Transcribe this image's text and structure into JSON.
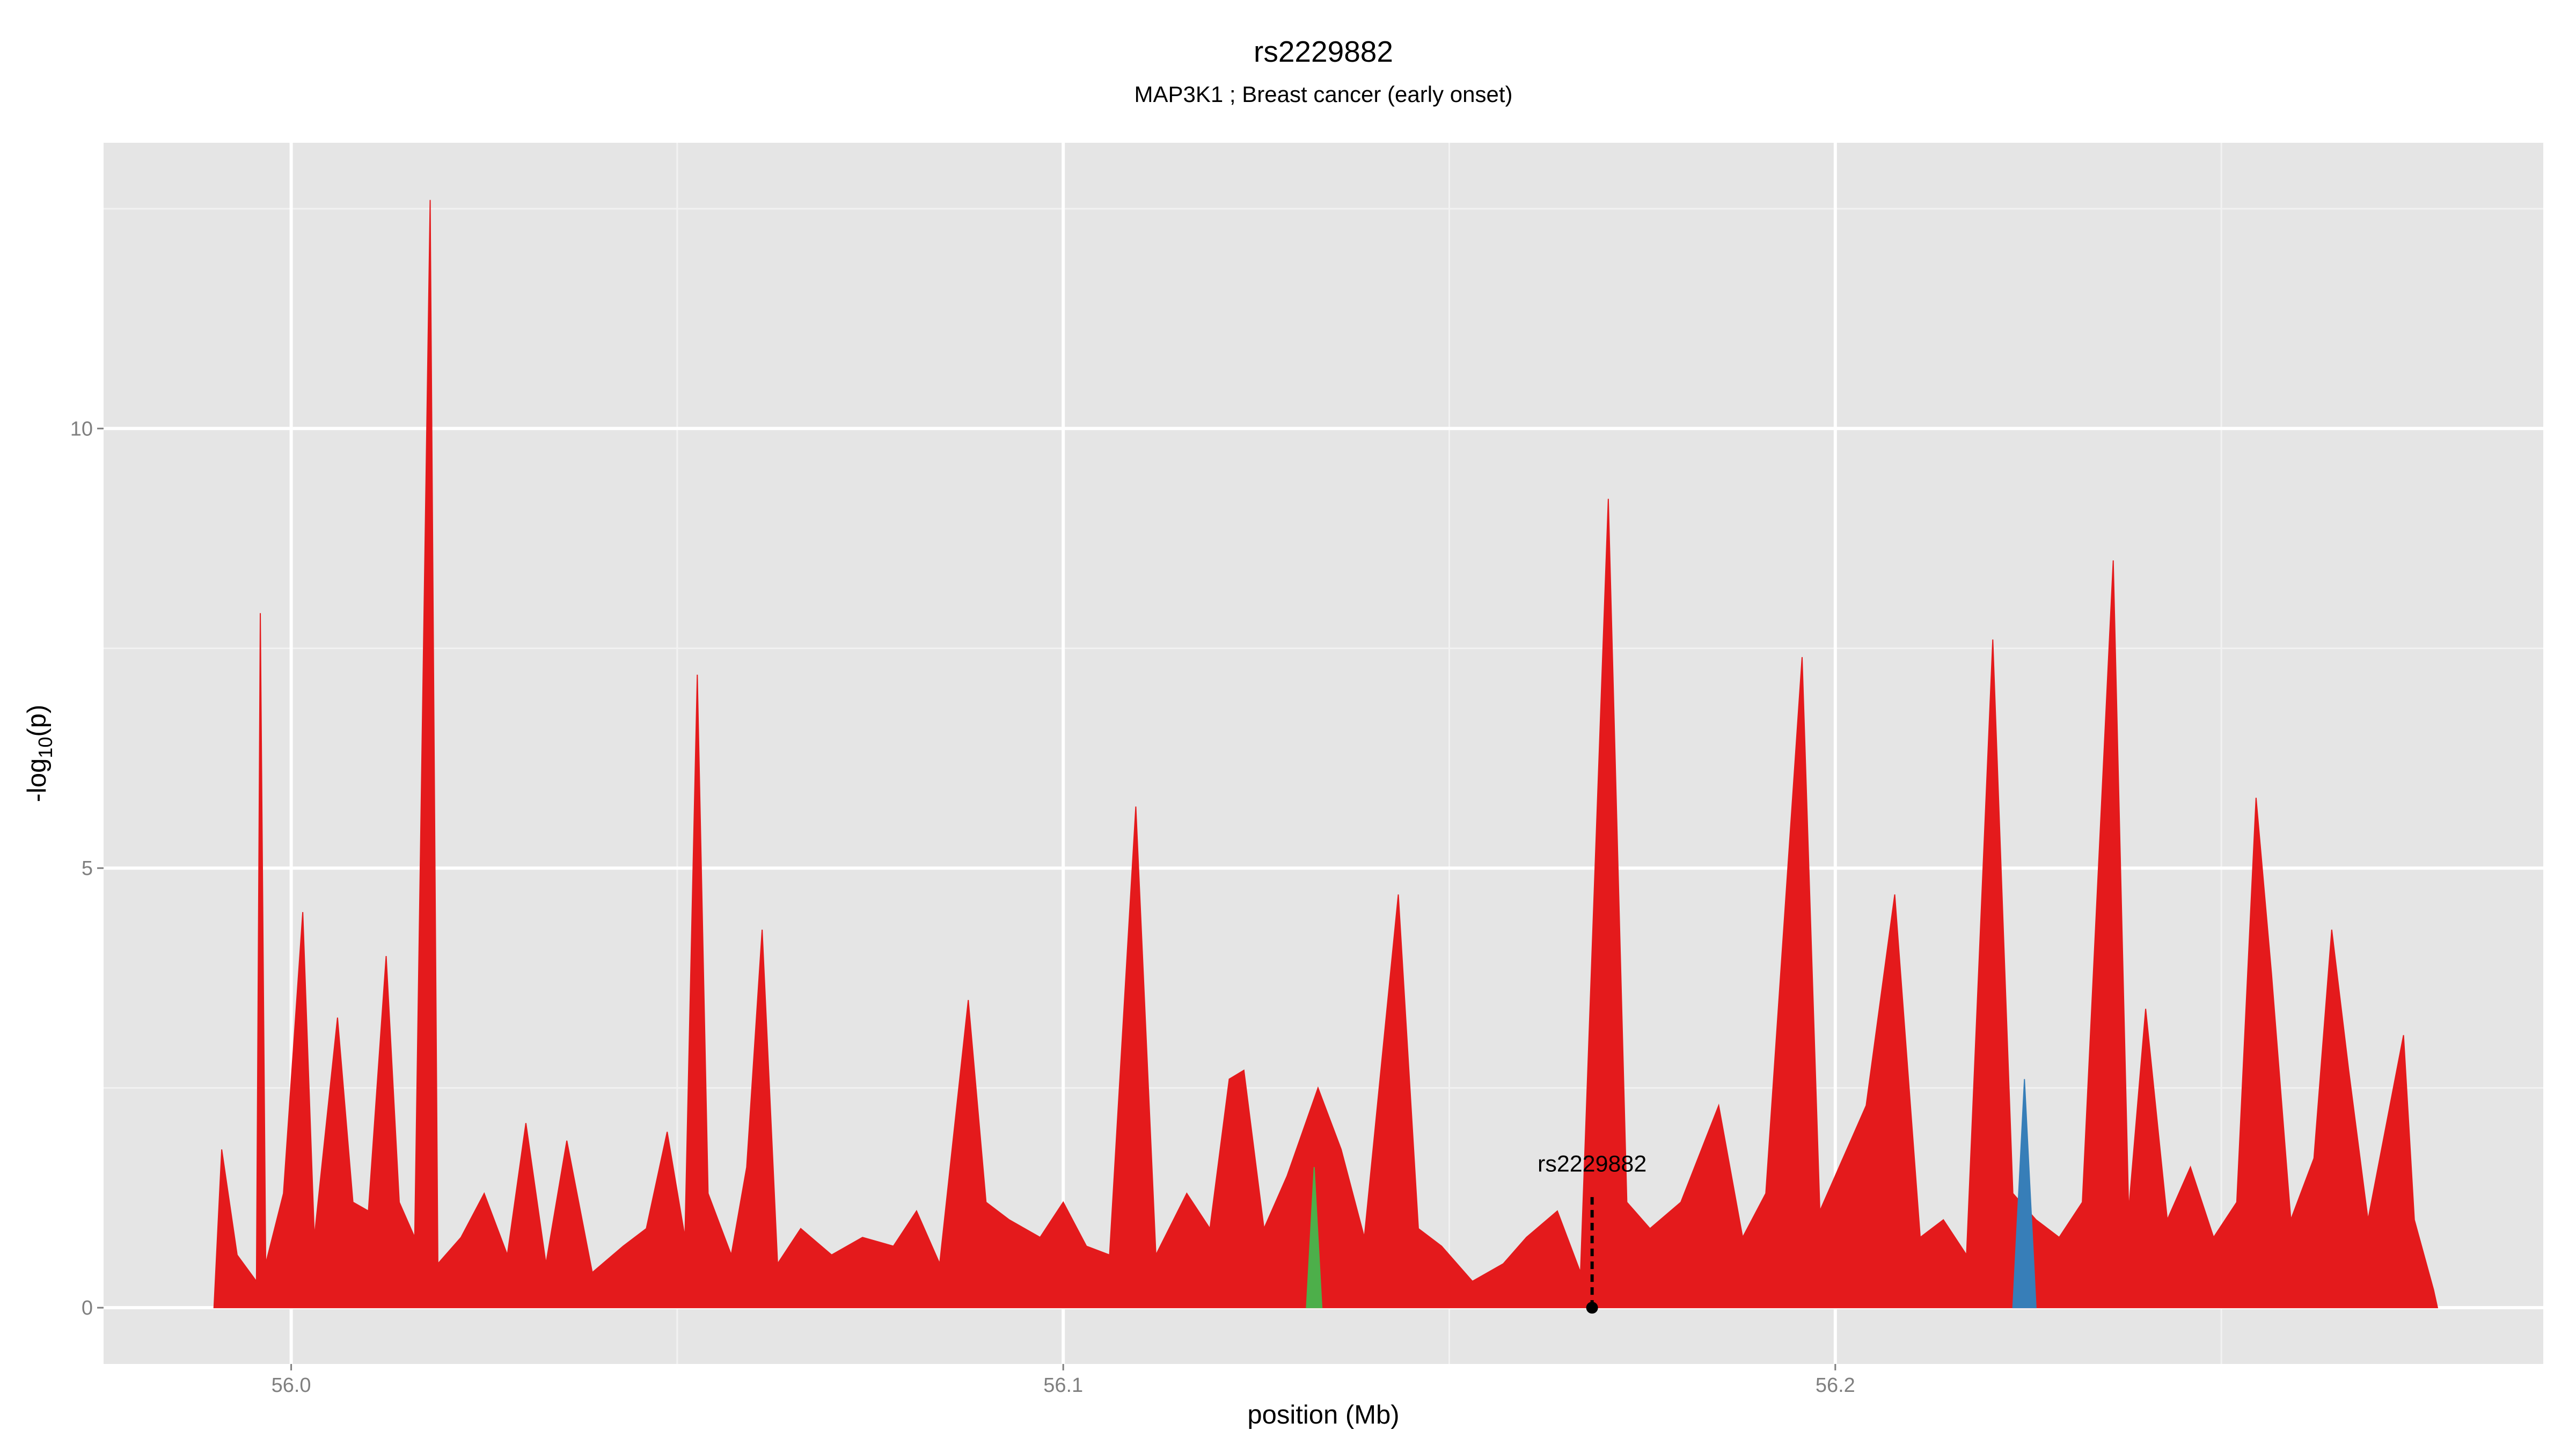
{
  "chart_data": {
    "type": "area",
    "title": "rs2229882",
    "subtitle": "MAP3K1 ; Breast cancer (early onset)",
    "x_label": "position (Mb)",
    "y_label": {
      "prefix": "-log",
      "sub": "10",
      "suffix": "(p)"
    },
    "xlim": [
      55.9757,
      56.2917
    ],
    "ylim": [
      -0.64,
      13.25
    ],
    "xticks": [
      {
        "value": 56,
        "label": "56.0"
      },
      56.1,
      56.2
    ],
    "yticks": [
      0,
      5,
      10
    ],
    "x_minor_grid": [
      56.05,
      56.15,
      56.25
    ],
    "y_minor_grid": [
      2.5,
      7.5,
      12.5
    ],
    "grid": true,
    "background": "#e5e5e5",
    "series": [
      {
        "color": "#e41a1c",
        "x": [
          55.99,
          55.991,
          55.993,
          55.9955,
          55.996,
          55.9967,
          55.999,
          56.0015,
          56.003,
          56.006,
          56.008,
          56.01,
          56.0123,
          56.014,
          56.016,
          56.018,
          56.019,
          56.022,
          56.025,
          56.028,
          56.0304,
          56.033,
          56.0357,
          56.039,
          56.043,
          56.046,
          56.0487,
          56.051,
          56.0526,
          56.054,
          56.057,
          56.059,
          56.061,
          56.063,
          56.066,
          56.07,
          56.074,
          56.078,
          56.081,
          56.084,
          56.0877,
          56.09,
          56.093,
          56.097,
          56.1,
          56.103,
          56.106,
          56.1094,
          56.112,
          56.116,
          56.119,
          56.1215,
          56.1234,
          56.126,
          56.129,
          56.133,
          56.136,
          56.139,
          56.1434,
          56.146,
          56.149,
          56.153,
          56.157,
          56.16,
          56.164,
          56.167,
          56.1706,
          56.173,
          56.176,
          56.18,
          56.1849,
          56.188,
          56.191,
          56.1957,
          56.198,
          56.201,
          56.204,
          56.2077,
          56.211,
          56.214,
          56.217,
          56.2204,
          56.223,
          56.226,
          56.229,
          56.232,
          56.236,
          56.238,
          56.2402,
          56.243,
          56.246,
          56.249,
          56.252,
          56.2545,
          56.2565,
          56.259,
          56.262,
          56.2643,
          56.2665,
          56.269,
          56.2736,
          56.275,
          56.2775,
          56.278
        ],
        "values": [
          0,
          1.8,
          0.6,
          0.3,
          7.9,
          0.5,
          1.3,
          4.5,
          0.8,
          3.3,
          1.2,
          1.1,
          4.0,
          1.2,
          0.8,
          12.6,
          0.5,
          0.8,
          1.3,
          0.6,
          2.1,
          0.5,
          1.9,
          0.4,
          0.7,
          0.9,
          2.0,
          0.8,
          7.2,
          1.3,
          0.6,
          1.6,
          4.3,
          0.5,
          0.9,
          0.6,
          0.8,
          0.7,
          1.1,
          0.5,
          3.5,
          1.2,
          1.0,
          0.8,
          1.2,
          0.7,
          0.6,
          5.7,
          0.6,
          1.3,
          0.9,
          2.6,
          2.7,
          0.9,
          1.5,
          2.5,
          1.8,
          0.8,
          4.7,
          0.9,
          0.7,
          0.3,
          0.5,
          0.8,
          1.1,
          0.4,
          9.2,
          1.2,
          0.9,
          1.2,
          2.3,
          0.8,
          1.3,
          7.4,
          1.1,
          1.7,
          2.3,
          4.7,
          0.8,
          1.0,
          0.6,
          7.6,
          1.3,
          1.0,
          0.8,
          1.2,
          8.5,
          1.1,
          3.4,
          1.0,
          1.6,
          0.8,
          1.2,
          5.8,
          3.8,
          1.0,
          1.7,
          4.3,
          2.7,
          1.0,
          3.1,
          1.0,
          0.2,
          0
        ]
      },
      {
        "color": "#377eb8",
        "x": [
          56.223,
          56.2245,
          56.226
        ],
        "values": [
          0,
          2.6,
          0
        ]
      },
      {
        "color": "#4daf4a",
        "x": [
          56.1315,
          56.1325,
          56.1335
        ],
        "values": [
          0,
          1.6,
          0
        ]
      }
    ],
    "annotation": {
      "text": "rs2229882",
      "x": 56.1685,
      "y": 0
    }
  }
}
